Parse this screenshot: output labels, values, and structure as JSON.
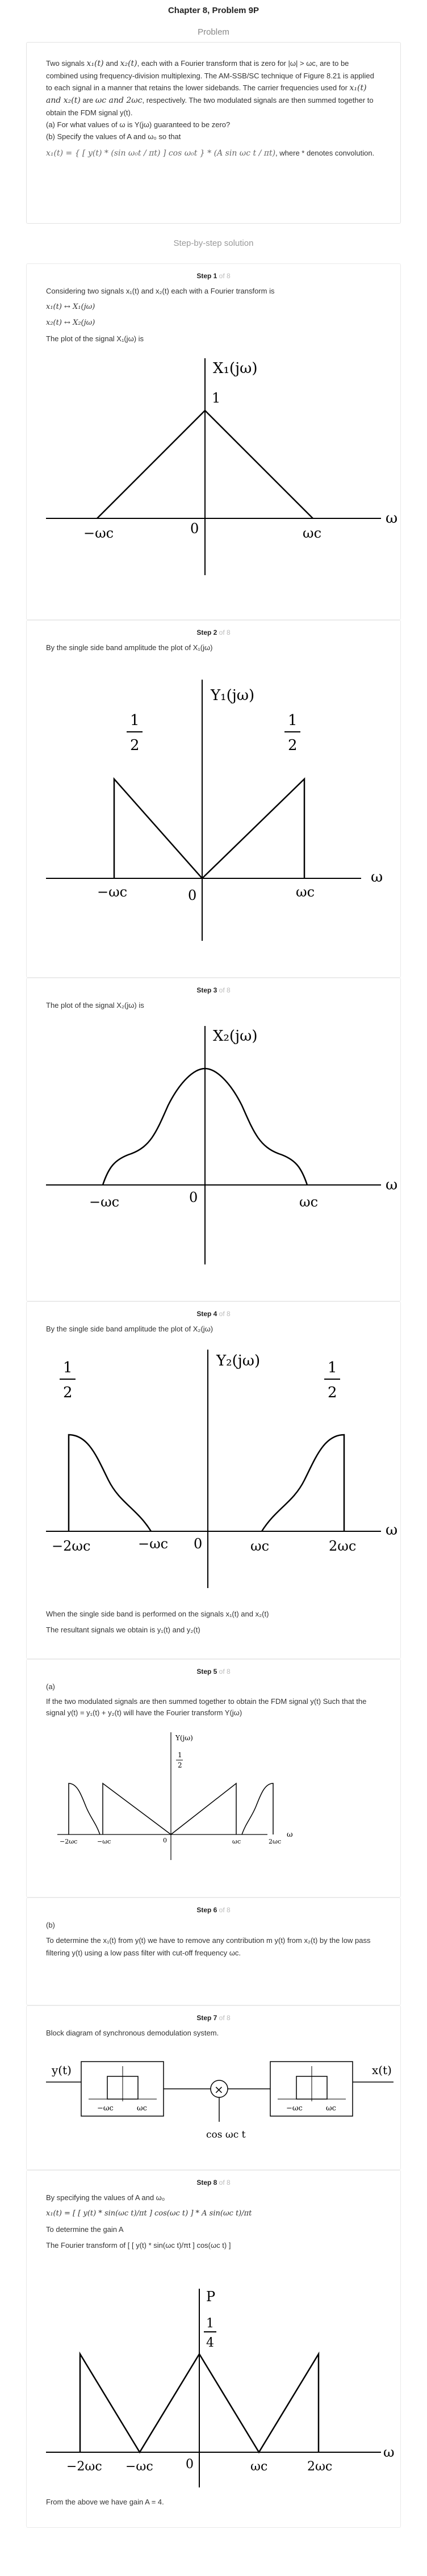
{
  "chapter_title": "Chapter 8, Problem 9P",
  "problem_header": "Problem",
  "problem": {
    "intro_a": "Two signals",
    "intro_sig1": "x₁(t)",
    "intro_and": "and",
    "intro_sig2": "x₂(t)",
    "intro_b": ", each with a Fourier transform that is zero for |ω| > ωc, are to be combined using frequency-division multiplexing. The AM-SSB/SC technique of Figure 8.21 is applied to each signal in a manner that retains the lower sidebands. The carrier frequencies used for",
    "carrier_sigs": "x₁(t) and x₂(t)",
    "carrier_are": "are",
    "carrier_vals": "ωc and 2ωc",
    "intro_c": ", respectively. The two modulated signals are then summed together to obtain the FDM signal y(t).",
    "part_a": "(a) For what values of ω is Y(jω) guaranteed to be zero?",
    "part_b": "(b) Specify the values of A and ω₀ so that",
    "equation": "x₁(t) = { [ y(t) * (sin ω₀t / πt) ] cos ω₀t } * (A sin ωc t / πt)",
    "equation_note": ", where * denotes convolution."
  },
  "solution_heading": "Step-by-step solution",
  "steps": [
    {
      "num": "Step 1",
      "of": "of 8",
      "lines": [
        "Considering two signals x₁(t) and x₂(t) each with a Fourier transform is",
        "x₁(t) ↔ X₁(jω)",
        "x₂(t) ↔ X₂(jω)",
        "The plot of the signal X₁(jω) is"
      ],
      "figure": {
        "ylabel": "X₁(jω)",
        "peak": "1",
        "left": "−ωc",
        "zero": "0",
        "right": "ωc",
        "axis": "ω"
      }
    },
    {
      "num": "Step 2",
      "of": "of 8",
      "lines": [
        "By the single side band amplitude the plot of X₁(jω)"
      ],
      "figure": {
        "ylabel": "Y₁(jω)",
        "half_num": "1",
        "half_den": "2",
        "left": "−ωc",
        "zero": "0",
        "right": "ωc",
        "axis": "ω"
      }
    },
    {
      "num": "Step 3",
      "of": "of 8",
      "lines": [
        "The plot of the signal X₂(jω) is"
      ],
      "figure": {
        "ylabel": "X₂(jω)",
        "left": "−ωc",
        "zero": "0",
        "right": "ωc",
        "axis": "ω"
      }
    },
    {
      "num": "Step 4",
      "of": "of 8",
      "lines": [
        "By the single side band amplitude the plot of X₂(jω)"
      ],
      "figure": {
        "ylabel": "Y₂(jω)",
        "half_num": "1",
        "half_den": "2",
        "t1": "−2ωc",
        "t2": "−ωc",
        "zero": "0",
        "t3": "ωc",
        "t4": "2ωc",
        "axis": "ω"
      },
      "after": [
        "When the single side band is performed on the signals x₁(t) and x₂(t)",
        "The resultant signals we obtain is y₁(t) and y₂(t)"
      ]
    },
    {
      "num": "Step 5",
      "of": "of 8",
      "lines": [
        "(a)",
        "If the two modulated signals are then summed together to obtain the FDM signal y(t) Such that the signal y(t) = y₁(t) + y₂(t) will have the Fourier transform Y(jω)"
      ],
      "figure": {
        "ylabel": "Y(jω)",
        "half_num": "1",
        "half_den": "2",
        "t1": "−2ωc",
        "t2": "−ωc",
        "zero": "0",
        "t3": "ωc",
        "t4": "2ωc",
        "axis": "ω"
      }
    },
    {
      "num": "Step 6",
      "of": "of 8",
      "lines": [
        "(b)",
        "To determine the x₁(t) from y(t) we have to remove any contribution m y(t) from x₂(t) by the low pass filtering y(t) using a low pass filter with cut-off frequency ωc."
      ]
    },
    {
      "num": "Step 7",
      "of": "of 8",
      "lines": [
        "Block diagram of synchronous demodulation system."
      ],
      "figure": {
        "input": "y(t)",
        "output": "x(t)",
        "cos": "cos ωc t",
        "lo": "−ωc",
        "hi": "ωc",
        "mult": "×"
      }
    },
    {
      "num": "Step 8",
      "of": "of 8",
      "lines": [
        "By specifying the values of A and ω₀",
        "x₁(t) = [ [ y(t) * sin(ωc t)/πt ] cos(ωc t) ] * A sin(ωc t)/πt",
        "To determine the gain A",
        "The Fourier transform of [ [ y(t) * sin(ωc t)/πt ] cos(ωc t) ]"
      ],
      "figure": {
        "ylabel": "P",
        "q_num": "1",
        "q_den": "4",
        "t1": "−2ωc",
        "t2": "−ωc",
        "zero": "0",
        "t3": "ωc",
        "t4": "2ωc",
        "axis": "ω"
      },
      "after": [
        "From the above we have gain A = 4."
      ]
    }
  ]
}
